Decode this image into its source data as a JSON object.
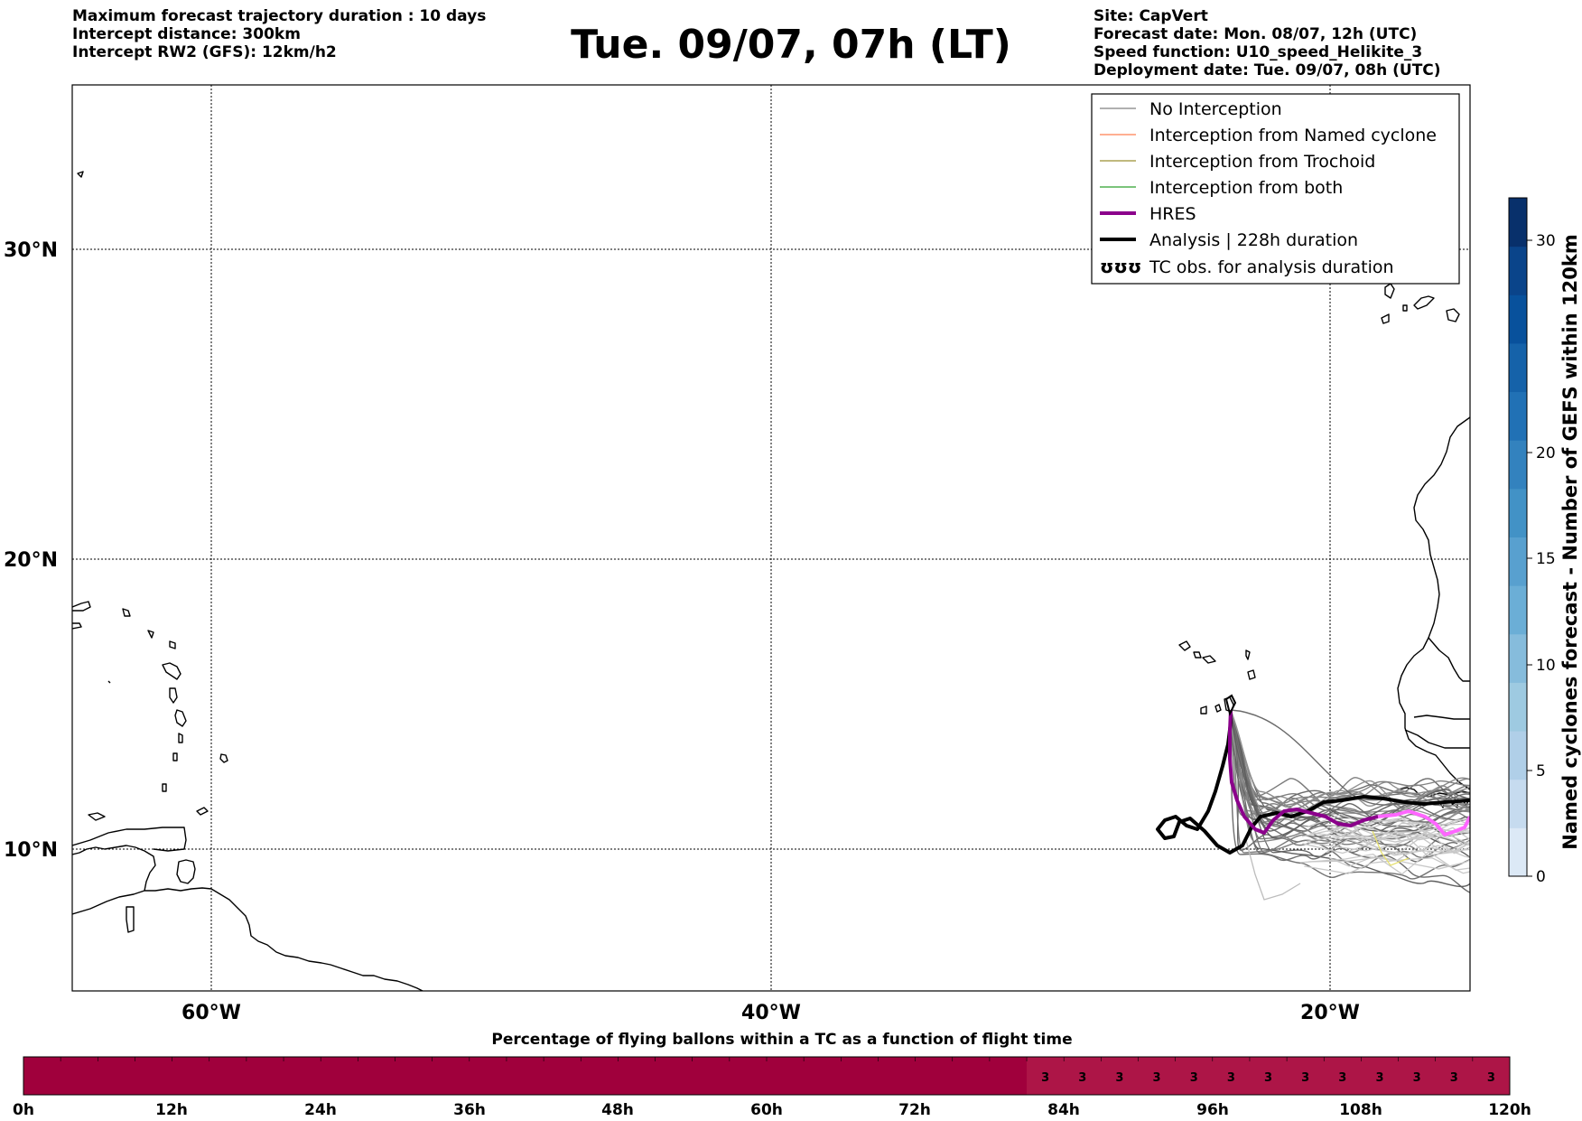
{
  "header": {
    "left_lines": [
      "Maximum forecast trajectory duration : 10 days",
      "Intercept distance: 300km",
      "Intercept RW2 (GFS):  12km/h2"
    ],
    "title": "Tue. 09/07, 07h (LT)",
    "right_lines": [
      "Site: CapVert",
      "Forecast date: Mon. 08/07, 12h (UTC)",
      "Speed function: U10_speed_Helikite_3",
      "Deployment date: Tue. 09/07, 08h (UTC)"
    ]
  },
  "map": {
    "lon_labels": [
      "60°W",
      "40°W",
      "20°W"
    ],
    "lat_labels": [
      "30°N",
      "20°N",
      "10°N"
    ],
    "extent": {
      "lon": [
        -65,
        -15
      ],
      "lat": [
        5.4,
        34.6
      ]
    },
    "gridlines": true
  },
  "legend": {
    "items": [
      {
        "label": "No Interception",
        "color": "#808080",
        "style": "thin"
      },
      {
        "label": "Interception from Named cyclone",
        "color": "#ff7f50",
        "style": "thin"
      },
      {
        "label": "Interception from Trochoid",
        "color": "#9a8f30",
        "style": "thin"
      },
      {
        "label": "Interception from both",
        "color": "#2ca02c",
        "style": "thin"
      },
      {
        "label": "HRES",
        "color": "#8b008b",
        "style": "thick"
      },
      {
        "label": "Analysis | 228h duration",
        "color": "#000000",
        "style": "thick"
      },
      {
        "label": "TC obs. for analysis duration",
        "color": "#000000",
        "style": "symbol"
      }
    ],
    "symbol_glyph": "ʊʊʊ"
  },
  "colorbar": {
    "title": "Named cyclones forecast - Number of GEFS within 120km",
    "ticks": [
      "0",
      "5",
      "10",
      "15",
      "20",
      "30"
    ],
    "colors": [
      "#dce9f6",
      "#c6dbef",
      "#b0cfe8",
      "#9ecae1",
      "#86bcdc",
      "#6baed6",
      "#58a0cf",
      "#4292c6",
      "#3382be",
      "#2171b5",
      "#1562a9",
      "#08519c",
      "#0a448a",
      "#08306b"
    ]
  },
  "flight_bar": {
    "title": "Percentage of flying ballons within a TC as a function of flight time",
    "ticks": [
      "0h",
      "12h",
      "24h",
      "36h",
      "48h",
      "60h",
      "72h",
      "84h",
      "96h",
      "108h",
      "120h"
    ],
    "value_label": "3",
    "value_count": 13,
    "color_a": "#a0003c",
    "color_b": "#ad1547"
  }
}
